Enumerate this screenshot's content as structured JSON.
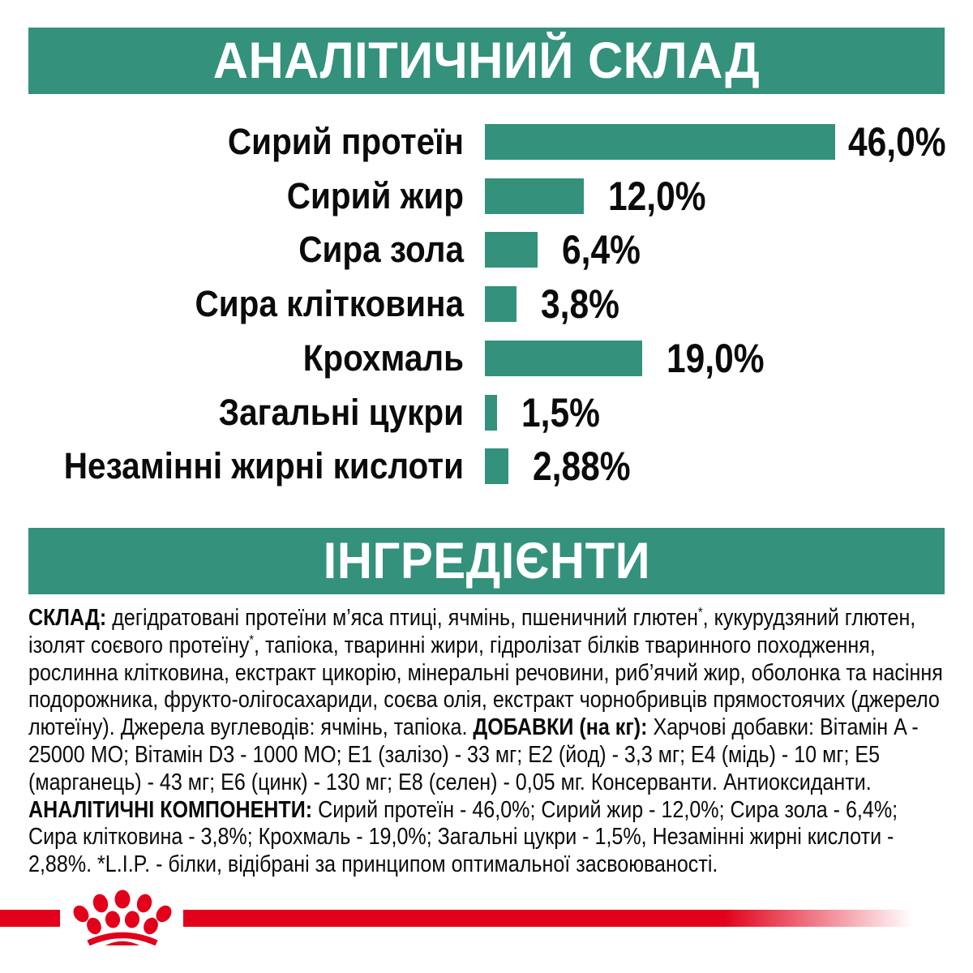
{
  "sections": {
    "analytical_title": "АНАЛІТИЧНИЙ СКЛАД",
    "ingredients_title": "ІНГРЕДІЄНТИ"
  },
  "chart_data": {
    "type": "bar",
    "orientation": "horizontal",
    "title": "АНАЛІТИЧНИЙ СКЛАД",
    "categories": [
      "Сирий протеїн",
      "Сирий жир",
      "Сира зола",
      "Сира клітковина",
      "Крохмаль",
      "Загальні цукри",
      "Незамінні жирні кислоти"
    ],
    "values": [
      46.0,
      12.0,
      6.4,
      3.8,
      19.0,
      1.5,
      2.88
    ],
    "value_labels": [
      "46,0%",
      "12,0%",
      "6,4%",
      "3,8%",
      "19,0%",
      "1,5%",
      "2,88%"
    ],
    "unit": "%",
    "xlim": [
      0,
      50
    ],
    "grid": false,
    "legend": false,
    "bar_color": "#33917C",
    "value_label_position": "right-of-bar"
  },
  "ingredients": {
    "segments": [
      {
        "text": "СКЛАД: ",
        "bold": true
      },
      {
        "text": "дегідратовані протеїни м’яса птиці, ячмінь, пшеничний глютен",
        "bold": false
      },
      {
        "text": "*",
        "bold": false,
        "sup": true
      },
      {
        "text": ", кукурудзяний глютен, ізолят соєвого протеїну",
        "bold": false
      },
      {
        "text": "*",
        "bold": false,
        "sup": true
      },
      {
        "text": ", тапіока, тваринні жири, гідролізат білків тваринного походження, рослинна клітковина, екстракт цикорію, мінеральні речовини, риб’ячий жир, оболонка та насіння подорожника, фрукто-олігосахариди, соєва олія, екстракт чорнобривців прямостоячих (джерело лютеїну). Джерела вуглеводів: ячмінь, тапіока. ",
        "bold": false
      },
      {
        "text": "ДОБАВКИ (на кг): ",
        "bold": true
      },
      {
        "text": "Харчові добавки: Вітамін A - 25000 МО; Вітамін D3 - 1000 МО; E1 (залізо) - 33 мг; E2 (йод) - 3,3 мг; E4 (мідь) - 10 мг; E5 (марганець) - 43 мг; E6 (цинк) - 130 мг; E8 (селен) - 0,05 мг. Консерванти. Антиоксиданти. ",
        "bold": false
      },
      {
        "text": "АНАЛІТИЧНІ КОМПОНЕНТИ: ",
        "bold": true
      },
      {
        "text": "Сирий протеїн - 46,0%; Сирий жир - 12,0%; Сира зола - 6,4%; Сира клітковина - 3,8%; Крохмаль - 19,0%; Загальні цукри - 1,5%, Незамінні жирні кислоти - 2,88%. *L.I.P. - білки, відібрані за принципом оптимальної засвоюваності.",
        "bold": false
      }
    ]
  },
  "footer": {
    "logo_icon": "royal-canin-crown-icon"
  },
  "colors": {
    "green": "#33917C",
    "red": "#E2001A",
    "text": "#0B0B0B",
    "banner_text": "#FFFFFF"
  }
}
